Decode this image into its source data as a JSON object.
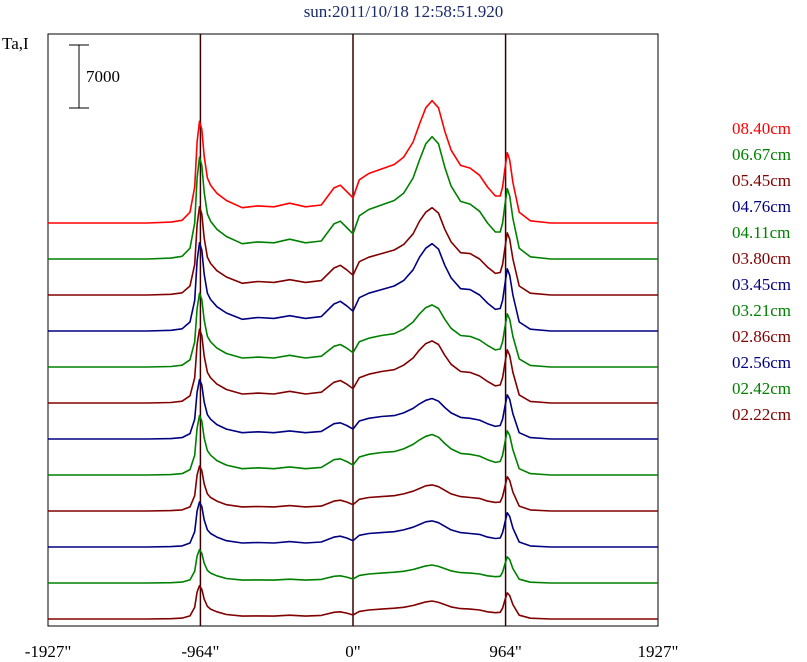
{
  "chart_data": {
    "type": "line",
    "title": "sun:2011/10/18 12:58:51.920",
    "ylabel": "Ta,I",
    "scale_bar_label": "7000",
    "scale_bar_value": 7000,
    "x_ticks": [
      {
        "value": -1927,
        "label": "-1927\""
      },
      {
        "value": -964,
        "label": "-964\""
      },
      {
        "value": 0,
        "label": "0\""
      },
      {
        "value": 964,
        "label": "964\""
      },
      {
        "value": 1927,
        "label": "1927\""
      }
    ],
    "xlim": [
      -1927,
      1927
    ],
    "vertical_markers": [
      -964,
      0,
      964
    ],
    "trace_offset_step": 4000,
    "profile_x": [
      -1927,
      -1300,
      -1150,
      -1080,
      -1030,
      -1000,
      -985,
      -970,
      -955,
      -940,
      -920,
      -900,
      -860,
      -800,
      -700,
      -600,
      -500,
      -400,
      -300,
      -200,
      -120,
      -80,
      -40,
      0,
      40,
      100,
      180,
      260,
      320,
      380,
      420,
      460,
      500,
      540,
      580,
      620,
      680,
      740,
      800,
      850,
      900,
      930,
      945,
      960,
      975,
      990,
      1010,
      1050,
      1120,
      1250,
      1500,
      1927
    ],
    "series": [
      {
        "name": "08.40cm",
        "color": "#ff0000",
        "baseline": 44000,
        "values": [
          0,
          0,
          100,
          300,
          1200,
          4000,
          9000,
          11300,
          10400,
          7400,
          5000,
          4200,
          3300,
          2500,
          1700,
          1900,
          1800,
          2200,
          1800,
          2000,
          3900,
          4200,
          3500,
          2800,
          4800,
          5500,
          6000,
          6500,
          7300,
          9000,
          11000,
          12800,
          13600,
          12800,
          10200,
          8100,
          6400,
          6100,
          5300,
          4000,
          3000,
          3000,
          4000,
          6000,
          7800,
          7000,
          4500,
          1200,
          250,
          0,
          0,
          0
        ]
      },
      {
        "name": "06.67cm",
        "color": "#008000",
        "baseline": 40000,
        "values": [
          0,
          0,
          100,
          300,
          1200,
          4000,
          9000,
          11300,
          10400,
          7400,
          5000,
          4200,
          3300,
          2500,
          1700,
          1900,
          1800,
          2200,
          1800,
          2000,
          3900,
          4200,
          3500,
          2800,
          4800,
          5500,
          6000,
          6500,
          7300,
          9000,
          11000,
          12800,
          13600,
          12800,
          10200,
          8100,
          6400,
          6100,
          5300,
          4000,
          3000,
          3000,
          4000,
          6000,
          7800,
          7000,
          4500,
          1200,
          250,
          0,
          0,
          0
        ]
      },
      {
        "name": "05.45cm",
        "color": "#800000",
        "baseline": 36000,
        "values": [
          0,
          0,
          80,
          250,
          1000,
          3400,
          7800,
          9800,
          9000,
          6300,
          4200,
          3500,
          2700,
          2000,
          1300,
          1500,
          1400,
          1700,
          1400,
          1600,
          3000,
          3300,
          2800,
          2200,
          3700,
          4200,
          4600,
          5000,
          5600,
          6800,
          8200,
          9200,
          9700,
          9100,
          7300,
          5900,
          4700,
          4600,
          4000,
          3100,
          2400,
          2500,
          3400,
          5200,
          6900,
          6200,
          4000,
          1000,
          200,
          0,
          0,
          0
        ]
      },
      {
        "name": "04.76cm",
        "color": "#000080",
        "baseline": 32000,
        "values": [
          0,
          0,
          80,
          250,
          1000,
          3400,
          7800,
          9800,
          9000,
          6300,
          4200,
          3500,
          2700,
          2000,
          1300,
          1500,
          1400,
          1700,
          1400,
          1600,
          3000,
          3300,
          2800,
          2200,
          3700,
          4200,
          4600,
          5000,
          5600,
          6800,
          8200,
          9200,
          9700,
          9100,
          7300,
          5900,
          4700,
          4600,
          4000,
          3100,
          2400,
          2500,
          3400,
          5200,
          6900,
          6200,
          4000,
          1000,
          200,
          0,
          0,
          0
        ]
      },
      {
        "name": "04.11cm",
        "color": "#008000",
        "baseline": 28000,
        "values": [
          0,
          0,
          60,
          200,
          800,
          2800,
          6500,
          8200,
          7500,
          5200,
          3400,
          2800,
          2100,
          1500,
          1000,
          1100,
          1000,
          1300,
          1000,
          1200,
          2300,
          2500,
          2100,
          1600,
          2800,
          3200,
          3500,
          3700,
          4200,
          5000,
          5900,
          6600,
          6900,
          6500,
          5300,
          4300,
          3500,
          3400,
          3000,
          2400,
          1900,
          2000,
          2800,
          4400,
          5900,
          5300,
          3400,
          900,
          180,
          0,
          0,
          0
        ]
      },
      {
        "name": "03.80cm",
        "color": "#800000",
        "baseline": 24000,
        "values": [
          0,
          0,
          60,
          200,
          800,
          2800,
          6500,
          8200,
          7500,
          5200,
          3400,
          2800,
          2100,
          1500,
          1000,
          1100,
          1000,
          1300,
          1000,
          1200,
          2300,
          2500,
          2100,
          1600,
          2800,
          3200,
          3500,
          3700,
          4200,
          5000,
          5900,
          6600,
          6900,
          6500,
          5300,
          4300,
          3500,
          3400,
          3000,
          2400,
          1900,
          2000,
          2800,
          4400,
          5900,
          5300,
          3400,
          900,
          180,
          0,
          0,
          0
        ]
      },
      {
        "name": "03.45cm",
        "color": "#000080",
        "baseline": 20000,
        "values": [
          0,
          0,
          50,
          150,
          600,
          2200,
          5200,
          6600,
          6000,
          4100,
          2700,
          2200,
          1600,
          1100,
          700,
          800,
          700,
          900,
          700,
          850,
          1700,
          1800,
          1500,
          1100,
          2000,
          2300,
          2500,
          2600,
          2900,
          3400,
          3900,
          4300,
          4500,
          4200,
          3500,
          2900,
          2400,
          2300,
          2100,
          1700,
          1400,
          1500,
          2200,
          3600,
          4900,
          4400,
          2800,
          700,
          150,
          0,
          0,
          0
        ]
      },
      {
        "name": "03.21cm",
        "color": "#008000",
        "baseline": 16000,
        "values": [
          0,
          0,
          50,
          150,
          600,
          2200,
          5200,
          6600,
          6000,
          4100,
          2700,
          2200,
          1600,
          1100,
          700,
          800,
          700,
          900,
          700,
          850,
          1700,
          1800,
          1500,
          1100,
          2000,
          2300,
          2500,
          2600,
          2900,
          3400,
          3900,
          4300,
          4500,
          4200,
          3500,
          2900,
          2400,
          2300,
          2100,
          1700,
          1400,
          1500,
          2200,
          3600,
          4900,
          4400,
          2800,
          700,
          150,
          0,
          0,
          0
        ]
      },
      {
        "name": "02.86cm",
        "color": "#800000",
        "baseline": 12000,
        "values": [
          0,
          0,
          40,
          120,
          450,
          1700,
          4000,
          5000,
          4500,
          3000,
          1900,
          1500,
          1100,
          700,
          450,
          500,
          450,
          600,
          450,
          550,
          1100,
          1200,
          1000,
          700,
          1300,
          1500,
          1600,
          1700,
          1900,
          2200,
          2500,
          2800,
          2900,
          2700,
          2300,
          1900,
          1600,
          1500,
          1400,
          1100,
          950,
          1000,
          1600,
          2700,
          3800,
          3400,
          2100,
          550,
          120,
          0,
          0,
          0
        ]
      },
      {
        "name": "02.56cm",
        "color": "#000080",
        "baseline": 8000,
        "values": [
          0,
          0,
          40,
          120,
          450,
          1700,
          4000,
          5000,
          4500,
          3000,
          1900,
          1500,
          1100,
          700,
          450,
          500,
          450,
          600,
          450,
          550,
          1100,
          1200,
          1000,
          700,
          1300,
          1500,
          1600,
          1700,
          1900,
          2200,
          2500,
          2800,
          2900,
          2700,
          2300,
          1900,
          1600,
          1500,
          1400,
          1100,
          950,
          1000,
          1600,
          2700,
          3800,
          3400,
          2100,
          550,
          120,
          0,
          0,
          0
        ]
      },
      {
        "name": "02.42cm",
        "color": "#008000",
        "baseline": 4000,
        "values": [
          0,
          0,
          30,
          100,
          350,
          1300,
          3000,
          3700,
          3300,
          2200,
          1400,
          1100,
          800,
          500,
          320,
          350,
          320,
          420,
          320,
          400,
          750,
          800,
          650,
          450,
          850,
          1000,
          1100,
          1200,
          1300,
          1500,
          1700,
          1900,
          2000,
          1850,
          1600,
          1350,
          1150,
          1100,
          1000,
          800,
          700,
          750,
          1200,
          2100,
          2900,
          2600,
          1600,
          420,
          90,
          0,
          0,
          0
        ]
      },
      {
        "name": "02.22cm",
        "color": "#800000",
        "baseline": 0,
        "values": [
          0,
          0,
          30,
          100,
          350,
          1300,
          3000,
          3700,
          3300,
          2200,
          1400,
          1100,
          800,
          500,
          320,
          350,
          320,
          420,
          320,
          400,
          750,
          800,
          650,
          450,
          850,
          1000,
          1100,
          1200,
          1300,
          1500,
          1700,
          1900,
          2000,
          1850,
          1600,
          1350,
          1150,
          1100,
          1000,
          800,
          700,
          750,
          1200,
          2100,
          2900,
          2600,
          1600,
          420,
          90,
          0,
          0,
          0
        ]
      }
    ],
    "grid": false,
    "legend_placement": "right"
  }
}
